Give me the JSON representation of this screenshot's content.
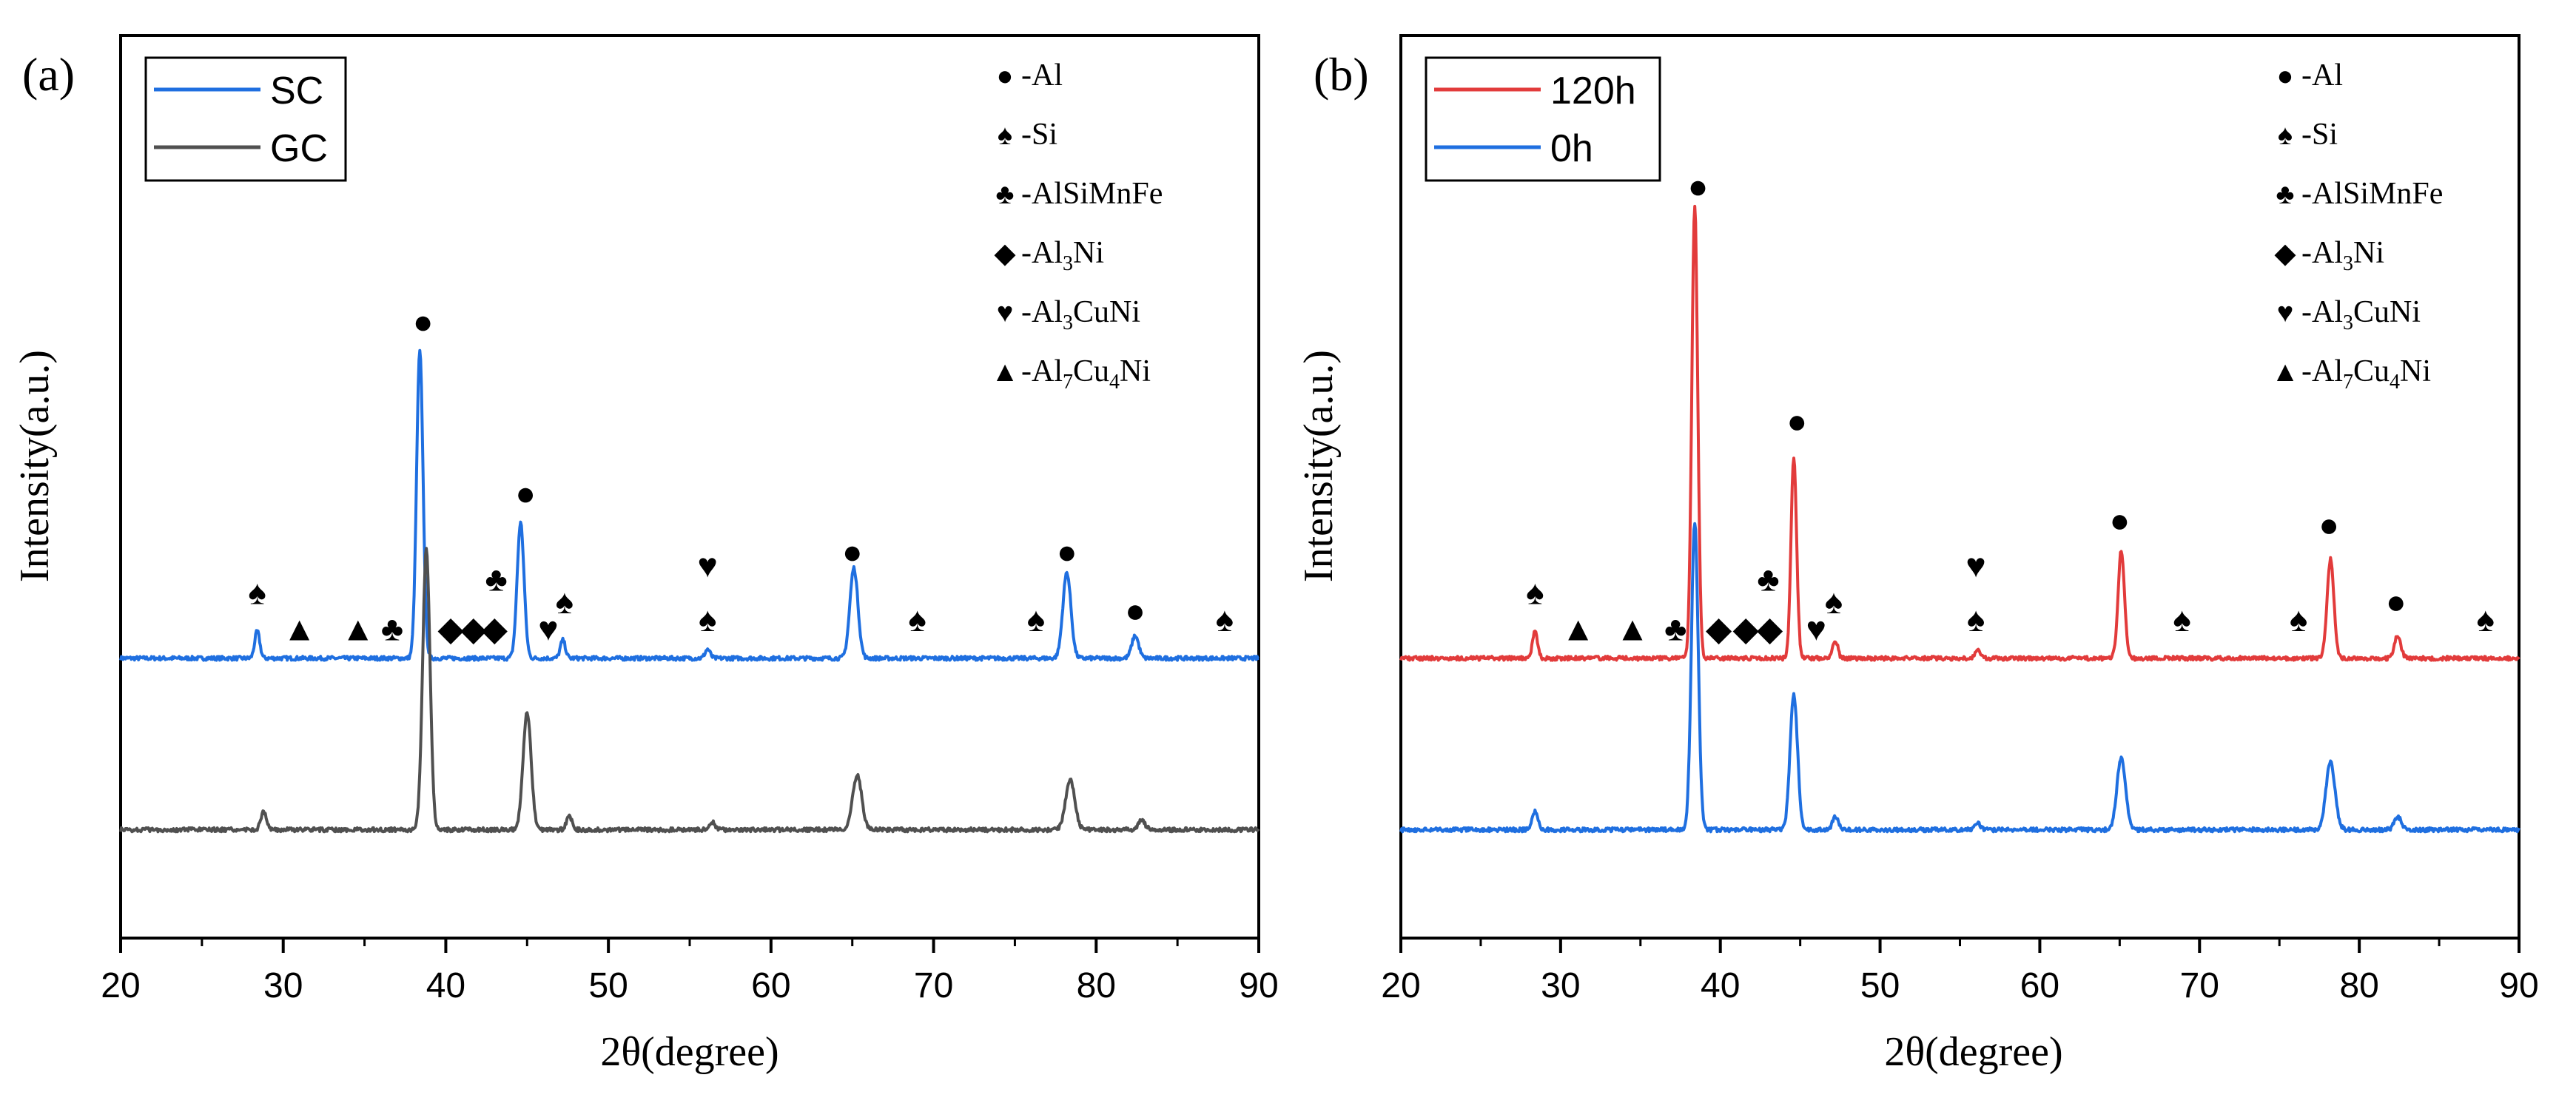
{
  "colors": {
    "sc": "#1f6fe0",
    "gc": "#505050",
    "h120": "#e23b3b",
    "h0": "#1f6fe0",
    "axis": "#000000",
    "marker": "#000000"
  },
  "legend_phases": [
    {
      "symbol": "●",
      "label": "-Al",
      "label_sub": []
    },
    {
      "symbol": "♠",
      "label": "-Si",
      "label_sub": []
    },
    {
      "symbol": "♣",
      "label": "-AlSiMnFe",
      "label_sub": []
    },
    {
      "symbol": "◆",
      "label": "-Al",
      "label_sub": [
        {
          "sub": "3"
        },
        {
          "text": "Ni"
        }
      ]
    },
    {
      "symbol": "♥",
      "label": "-Al",
      "label_sub": [
        {
          "sub": "3"
        },
        {
          "text": "CuNi"
        }
      ]
    },
    {
      "symbol": "▲",
      "label": "-Al",
      "label_sub": [
        {
          "sub": "7"
        },
        {
          "text": "Cu"
        },
        {
          "sub": "4"
        },
        {
          "text": "Ni"
        }
      ]
    }
  ],
  "chart_data": [
    {
      "type": "line",
      "panel_label": "(a)",
      "xlabel": "2θ(degree)",
      "ylabel": "Intensity(a.u.)",
      "xlim": [
        20,
        90
      ],
      "x_ticks": [
        20,
        30,
        40,
        50,
        60,
        70,
        80,
        90
      ],
      "ylim": [
        0,
        100
      ],
      "yaxis_ticks": false,
      "series": [
        {
          "name": "SC",
          "color": "#1f6fe0",
          "baseline": 31,
          "peaks": [
            [
              28.4,
              3,
              0.22
            ],
            [
              38.4,
              34,
              0.28
            ],
            [
              44.6,
              15,
              0.3
            ],
            [
              47.2,
              2,
              0.22
            ],
            [
              56.1,
              1,
              0.22
            ],
            [
              65.1,
              10,
              0.35
            ],
            [
              78.2,
              9.5,
              0.35
            ],
            [
              82.4,
              2.5,
              0.3
            ]
          ]
        },
        {
          "name": "GC",
          "color": "#505050",
          "baseline": 12,
          "peaks": [
            [
              28.8,
              2,
              0.25
            ],
            [
              38.8,
              31,
              0.32
            ],
            [
              45.0,
              13,
              0.35
            ],
            [
              47.6,
              1.5,
              0.25
            ],
            [
              56.4,
              0.8,
              0.25
            ],
            [
              65.3,
              6,
              0.4
            ],
            [
              78.4,
              5.5,
              0.4
            ],
            [
              82.8,
              1,
              0.3
            ]
          ]
        }
      ],
      "markers": [
        {
          "symbol": "♠",
          "x": 28.4,
          "y": 37
        },
        {
          "symbol": "▲",
          "x": 31.0,
          "y": 33
        },
        {
          "symbol": "▲",
          "x": 34.6,
          "y": 33
        },
        {
          "symbol": "♣",
          "x": 36.7,
          "y": 33
        },
        {
          "symbol": "◆",
          "x": 40.3,
          "y": 33
        },
        {
          "symbol": "◆",
          "x": 41.7,
          "y": 33
        },
        {
          "symbol": "◆",
          "x": 43.0,
          "y": 33
        },
        {
          "symbol": "♣",
          "x": 43.1,
          "y": 38.5
        },
        {
          "symbol": "●",
          "x": 38.6,
          "y": 67
        },
        {
          "symbol": "●",
          "x": 44.9,
          "y": 48
        },
        {
          "symbol": "♥",
          "x": 46.3,
          "y": 33
        },
        {
          "symbol": "♠",
          "x": 47.3,
          "y": 36
        },
        {
          "symbol": "♥",
          "x": 56.1,
          "y": 40
        },
        {
          "symbol": "♠",
          "x": 56.1,
          "y": 34
        },
        {
          "symbol": "●",
          "x": 65.0,
          "y": 41.5
        },
        {
          "symbol": "♠",
          "x": 69.0,
          "y": 34
        },
        {
          "symbol": "♠",
          "x": 76.3,
          "y": 34
        },
        {
          "symbol": "●",
          "x": 78.2,
          "y": 41.5
        },
        {
          "symbol": "●",
          "x": 82.4,
          "y": 35
        },
        {
          "symbol": "♠",
          "x": 87.9,
          "y": 34
        }
      ]
    },
    {
      "type": "line",
      "panel_label": "(b)",
      "xlabel": "2θ(degree)",
      "ylabel": "Intensity(a.u.)",
      "xlim": [
        20,
        90
      ],
      "x_ticks": [
        20,
        30,
        40,
        50,
        60,
        70,
        80,
        90
      ],
      "ylim": [
        0,
        100
      ],
      "yaxis_ticks": false,
      "series": [
        {
          "name": "120h",
          "color": "#e23b3b",
          "baseline": 31,
          "peaks": [
            [
              28.4,
              3,
              0.22
            ],
            [
              38.4,
              50,
              0.26
            ],
            [
              44.6,
              22,
              0.25
            ],
            [
              47.2,
              2,
              0.22
            ],
            [
              56.1,
              1,
              0.22
            ],
            [
              65.1,
              12,
              0.28
            ],
            [
              78.2,
              11,
              0.3
            ],
            [
              82.4,
              2.5,
              0.28
            ]
          ]
        },
        {
          "name": "0h",
          "color": "#1f6fe0",
          "baseline": 12,
          "peaks": [
            [
              28.4,
              2,
              0.25
            ],
            [
              38.4,
              34,
              0.3
            ],
            [
              44.6,
              15,
              0.33
            ],
            [
              47.2,
              1.5,
              0.25
            ],
            [
              56.1,
              0.8,
              0.25
            ],
            [
              65.1,
              8,
              0.38
            ],
            [
              78.2,
              7.5,
              0.4
            ],
            [
              82.4,
              1.5,
              0.3
            ]
          ]
        }
      ],
      "markers": [
        {
          "symbol": "♠",
          "x": 28.4,
          "y": 37
        },
        {
          "symbol": "▲",
          "x": 31.1,
          "y": 33
        },
        {
          "symbol": "▲",
          "x": 34.5,
          "y": 33
        },
        {
          "symbol": "♣",
          "x": 37.2,
          "y": 33
        },
        {
          "symbol": "◆",
          "x": 39.9,
          "y": 33
        },
        {
          "symbol": "◆",
          "x": 41.6,
          "y": 33
        },
        {
          "symbol": "◆",
          "x": 43.1,
          "y": 33
        },
        {
          "symbol": "♣",
          "x": 43.0,
          "y": 38.5
        },
        {
          "symbol": "●",
          "x": 38.6,
          "y": 82
        },
        {
          "symbol": "●",
          "x": 44.8,
          "y": 56
        },
        {
          "symbol": "♥",
          "x": 46.0,
          "y": 33
        },
        {
          "symbol": "♠",
          "x": 47.1,
          "y": 36
        },
        {
          "symbol": "♥",
          "x": 56.0,
          "y": 40
        },
        {
          "symbol": "♠",
          "x": 56.0,
          "y": 34
        },
        {
          "symbol": "●",
          "x": 65.0,
          "y": 45
        },
        {
          "symbol": "♠",
          "x": 68.9,
          "y": 34
        },
        {
          "symbol": "♠",
          "x": 76.2,
          "y": 34
        },
        {
          "symbol": "●",
          "x": 78.1,
          "y": 44.5
        },
        {
          "symbol": "●",
          "x": 82.3,
          "y": 36
        },
        {
          "symbol": "♠",
          "x": 87.9,
          "y": 34
        }
      ]
    }
  ]
}
